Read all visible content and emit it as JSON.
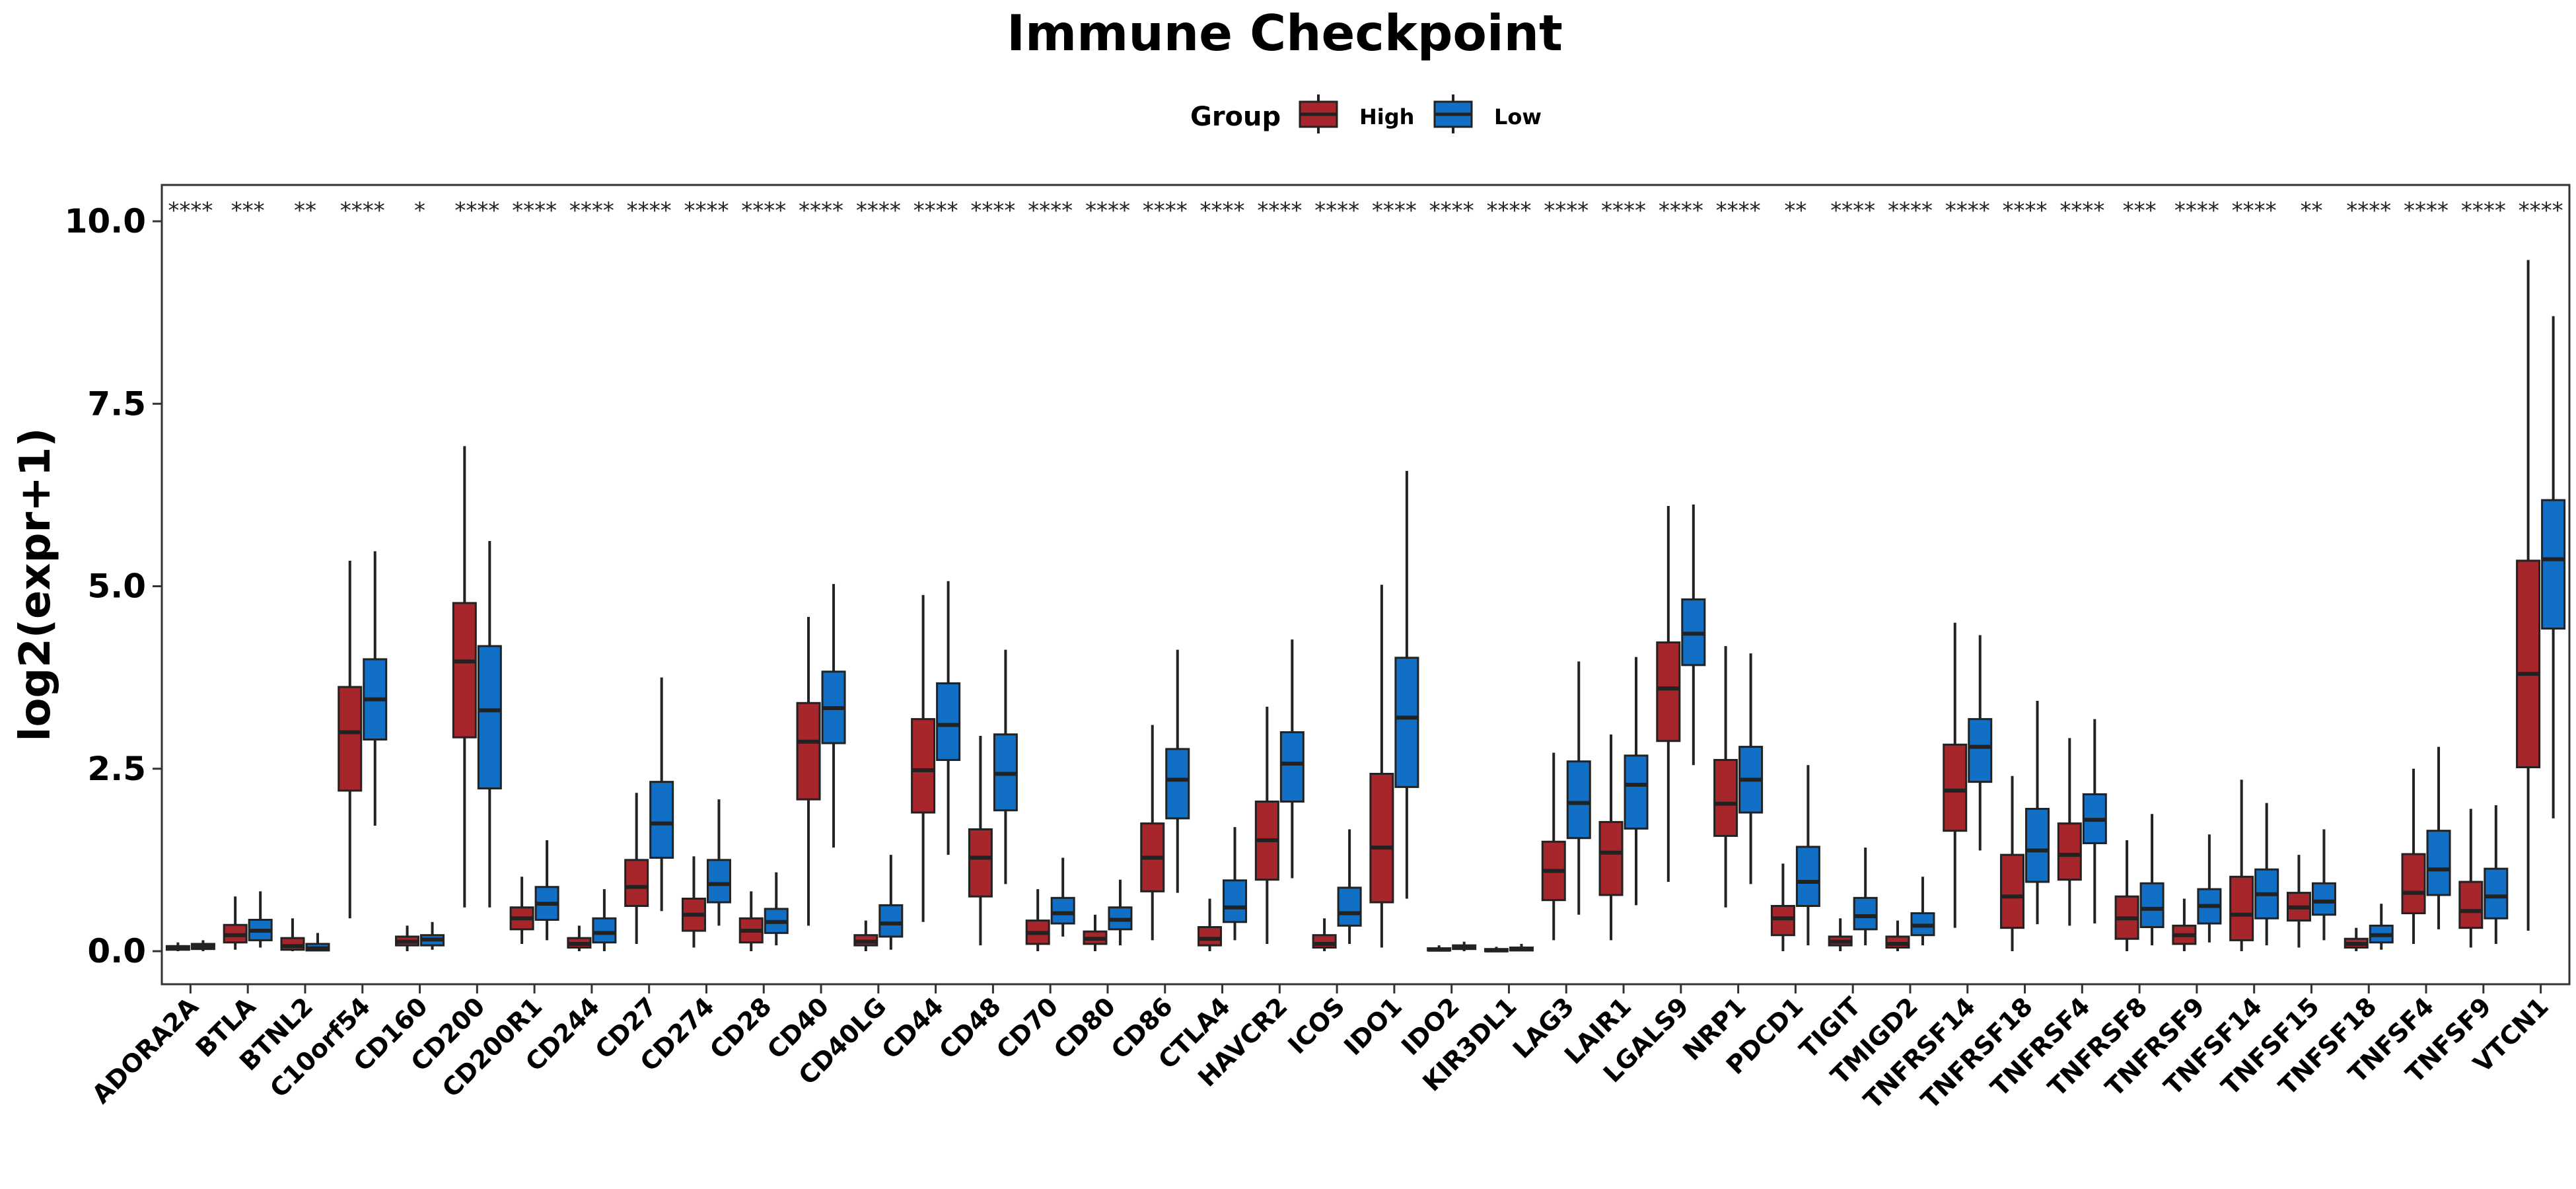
{
  "chart_data": {
    "type": "boxplot",
    "title": "Immune Checkpoint",
    "ylabel": "log2(expr+1)",
    "xlabel": "",
    "ylim": [
      -0.45,
      10.5
    ],
    "yticks": [
      "0.0",
      "2.5",
      "5.0",
      "7.5",
      "10.0"
    ],
    "legend": {
      "title": "Group",
      "position": "top",
      "items": [
        {
          "name": "High",
          "color": "#A6262B"
        },
        {
          "name": "Low",
          "color": "#1170C6"
        }
      ]
    },
    "categories": [
      "ADORA2A",
      "BTLA",
      "BTNL2",
      "C10orf54",
      "CD160",
      "CD200",
      "CD200R1",
      "CD244",
      "CD27",
      "CD274",
      "CD28",
      "CD40",
      "CD40LG",
      "CD44",
      "CD48",
      "CD70",
      "CD80",
      "CD86",
      "CTLA4",
      "HAVCR2",
      "ICOS",
      "IDO1",
      "IDO2",
      "KIR3DL1",
      "LAG3",
      "LAIR1",
      "LGALS9",
      "NRP1",
      "PDCD1",
      "TIGIT",
      "TMIGD2",
      "TNFRSF14",
      "TNFRSF18",
      "TNFRSF4",
      "TNFRSF8",
      "TNFRSF9",
      "TNFSF14",
      "TNFSF15",
      "TNFSF18",
      "TNFSF4",
      "TNFSF9",
      "VTCN1"
    ],
    "significance": [
      "****",
      "***",
      "**",
      "****",
      "*",
      "****",
      "****",
      "****",
      "****",
      "****",
      "****",
      "****",
      "****",
      "****",
      "****",
      "****",
      "****",
      "****",
      "****",
      "****",
      "****",
      "****",
      "****",
      "****",
      "****",
      "****",
      "****",
      "****",
      "**",
      "****",
      "****",
      "****",
      "****",
      "****",
      "***",
      "****",
      "****",
      "**",
      "****",
      "****",
      "****",
      "****"
    ],
    "series": [
      {
        "name": "High",
        "color": "#A6262B",
        "boxes": [
          [
            0.0,
            0.02,
            0.04,
            0.07,
            0.12
          ],
          [
            0.02,
            0.12,
            0.22,
            0.36,
            0.75
          ],
          [
            0.0,
            0.02,
            0.07,
            0.18,
            0.45
          ],
          [
            0.45,
            2.2,
            3.0,
            3.62,
            5.35
          ],
          [
            0.0,
            0.08,
            0.13,
            0.2,
            0.35
          ],
          [
            0.6,
            2.93,
            3.97,
            4.77,
            6.92
          ],
          [
            0.1,
            0.3,
            0.45,
            0.6,
            1.02
          ],
          [
            0.0,
            0.05,
            0.1,
            0.18,
            0.35
          ],
          [
            0.1,
            0.62,
            0.88,
            1.25,
            2.17
          ],
          [
            0.05,
            0.28,
            0.5,
            0.72,
            1.3
          ],
          [
            0.0,
            0.12,
            0.28,
            0.45,
            0.82
          ],
          [
            0.35,
            2.08,
            2.87,
            3.4,
            4.58
          ],
          [
            0.0,
            0.08,
            0.13,
            0.22,
            0.42
          ],
          [
            0.4,
            1.9,
            2.48,
            3.18,
            4.88
          ],
          [
            0.08,
            0.75,
            1.28,
            1.67,
            2.95
          ],
          [
            0.0,
            0.1,
            0.25,
            0.42,
            0.85
          ],
          [
            0.0,
            0.1,
            0.17,
            0.27,
            0.5
          ],
          [
            0.15,
            0.82,
            1.28,
            1.75,
            3.1
          ],
          [
            0.0,
            0.08,
            0.17,
            0.33,
            0.72
          ],
          [
            0.1,
            0.98,
            1.52,
            2.05,
            3.35
          ],
          [
            0.0,
            0.05,
            0.1,
            0.22,
            0.45
          ],
          [
            0.05,
            0.67,
            1.42,
            2.43,
            5.02
          ],
          [
            0.0,
            0.01,
            0.02,
            0.04,
            0.08
          ],
          [
            0.0,
            0.0,
            0.01,
            0.03,
            0.06
          ],
          [
            0.15,
            0.7,
            1.1,
            1.5,
            2.72
          ],
          [
            0.15,
            0.77,
            1.35,
            1.77,
            2.97
          ],
          [
            0.95,
            2.88,
            3.6,
            4.23,
            6.1
          ],
          [
            0.6,
            1.58,
            2.02,
            2.62,
            4.18
          ],
          [
            0.0,
            0.22,
            0.45,
            0.62,
            1.2
          ],
          [
            0.0,
            0.08,
            0.13,
            0.2,
            0.45
          ],
          [
            0.0,
            0.05,
            0.1,
            0.2,
            0.42
          ],
          [
            0.32,
            1.65,
            2.2,
            2.83,
            4.5
          ],
          [
            0.0,
            0.32,
            0.75,
            1.32,
            2.4
          ],
          [
            0.35,
            0.98,
            1.32,
            1.75,
            2.92
          ],
          [
            0.0,
            0.17,
            0.45,
            0.75,
            1.52
          ],
          [
            0.0,
            0.1,
            0.22,
            0.35,
            0.72
          ],
          [
            0.0,
            0.15,
            0.5,
            1.02,
            2.35
          ],
          [
            0.05,
            0.42,
            0.6,
            0.8,
            1.32
          ],
          [
            0.0,
            0.05,
            0.1,
            0.17,
            0.32
          ],
          [
            0.1,
            0.52,
            0.8,
            1.33,
            2.5
          ],
          [
            0.05,
            0.32,
            0.55,
            0.95,
            1.95
          ],
          [
            0.28,
            2.52,
            3.8,
            5.35,
            9.47
          ]
        ]
      },
      {
        "name": "Low",
        "color": "#1170C6",
        "boxes": [
          [
            0.0,
            0.03,
            0.06,
            0.1,
            0.15
          ],
          [
            0.05,
            0.15,
            0.28,
            0.43,
            0.82
          ],
          [
            0.0,
            0.01,
            0.04,
            0.1,
            0.25
          ],
          [
            1.72,
            2.9,
            3.45,
            4.0,
            5.48
          ],
          [
            0.02,
            0.08,
            0.16,
            0.22,
            0.4
          ],
          [
            0.6,
            2.23,
            3.3,
            4.18,
            5.62
          ],
          [
            0.15,
            0.43,
            0.65,
            0.88,
            1.52
          ],
          [
            0.0,
            0.12,
            0.25,
            0.45,
            0.85
          ],
          [
            0.55,
            1.28,
            1.75,
            2.32,
            3.75
          ],
          [
            0.35,
            0.67,
            0.92,
            1.25,
            2.08
          ],
          [
            0.08,
            0.25,
            0.4,
            0.58,
            1.08
          ],
          [
            1.42,
            2.85,
            3.33,
            3.83,
            5.03
          ],
          [
            0.02,
            0.2,
            0.38,
            0.63,
            1.32
          ],
          [
            1.32,
            2.62,
            3.1,
            3.67,
            5.07
          ],
          [
            0.92,
            1.93,
            2.43,
            2.97,
            4.13
          ],
          [
            0.2,
            0.38,
            0.52,
            0.73,
            1.28
          ],
          [
            0.08,
            0.3,
            0.43,
            0.6,
            0.98
          ],
          [
            0.8,
            1.82,
            2.35,
            2.77,
            4.13
          ],
          [
            0.15,
            0.4,
            0.6,
            0.97,
            1.7
          ],
          [
            1.0,
            2.05,
            2.57,
            3.0,
            4.27
          ],
          [
            0.1,
            0.35,
            0.52,
            0.87,
            1.67
          ],
          [
            0.72,
            2.25,
            3.2,
            4.02,
            6.58
          ],
          [
            0.0,
            0.03,
            0.05,
            0.08,
            0.13
          ],
          [
            0.0,
            0.01,
            0.03,
            0.05,
            0.1
          ],
          [
            0.5,
            1.55,
            2.03,
            2.6,
            3.97
          ],
          [
            0.63,
            1.68,
            2.28,
            2.68,
            4.03
          ],
          [
            2.55,
            3.92,
            4.35,
            4.82,
            6.12
          ],
          [
            0.92,
            1.9,
            2.35,
            2.8,
            4.08
          ],
          [
            0.08,
            0.62,
            0.95,
            1.43,
            2.55
          ],
          [
            0.08,
            0.3,
            0.48,
            0.73,
            1.42
          ],
          [
            0.08,
            0.22,
            0.35,
            0.52,
            1.02
          ],
          [
            1.38,
            2.32,
            2.8,
            3.18,
            4.33
          ],
          [
            0.37,
            0.95,
            1.38,
            1.95,
            3.43
          ],
          [
            0.38,
            1.48,
            1.8,
            2.15,
            3.18
          ],
          [
            0.08,
            0.33,
            0.58,
            0.93,
            1.88
          ],
          [
            0.12,
            0.38,
            0.62,
            0.85,
            1.6
          ],
          [
            0.08,
            0.45,
            0.78,
            1.12,
            2.03
          ],
          [
            0.15,
            0.5,
            0.68,
            0.93,
            1.67
          ],
          [
            0.02,
            0.12,
            0.22,
            0.35,
            0.65
          ],
          [
            0.3,
            0.77,
            1.12,
            1.65,
            2.8
          ],
          [
            0.1,
            0.45,
            0.75,
            1.13,
            2.0
          ],
          [
            1.82,
            4.42,
            5.37,
            6.18,
            8.7
          ]
        ]
      }
    ]
  }
}
